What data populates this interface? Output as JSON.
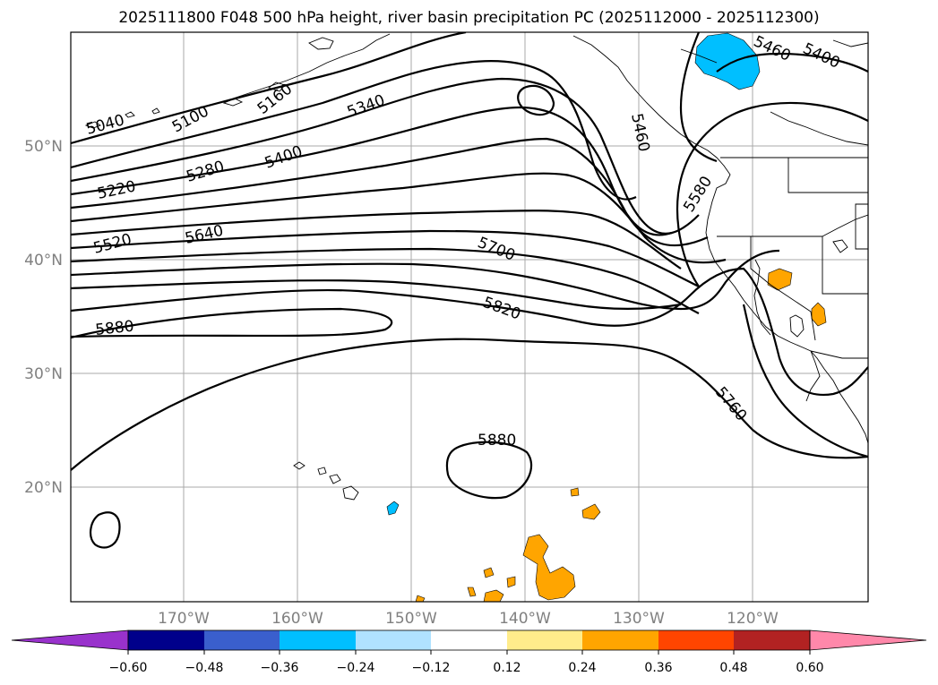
{
  "title": "2025111800 F048 500 hPa height, river basin precipitation PC (2025112000 - 2025112300)",
  "map": {
    "lat_labels": [
      "50°N",
      "40°N",
      "30°N",
      "20°N"
    ],
    "lon_labels": [
      "170°W",
      "160°W",
      "150°W",
      "140°W",
      "130°W",
      "120°W"
    ],
    "contour_labels": [
      "5040",
      "5100",
      "5160",
      "5220",
      "5280",
      "5340",
      "5400",
      "5460",
      "5400",
      "5460",
      "5520",
      "5640",
      "5580",
      "5700",
      "5820",
      "5760",
      "5880",
      "5880"
    ]
  },
  "colorbar": {
    "tick_labels": [
      "−0.60",
      "−0.48",
      "−0.36",
      "−0.24",
      "−0.12",
      "0.12",
      "0.24",
      "0.36",
      "0.48",
      "0.60"
    ],
    "colors": [
      "#9932cc",
      "#00008b",
      "#3a5fcd",
      "#00bfff",
      "#b0e2ff",
      "#ffffff",
      "#ffec8b",
      "#ffa500",
      "#ff4500",
      "#b22222",
      "#ff88aa"
    ]
  }
}
